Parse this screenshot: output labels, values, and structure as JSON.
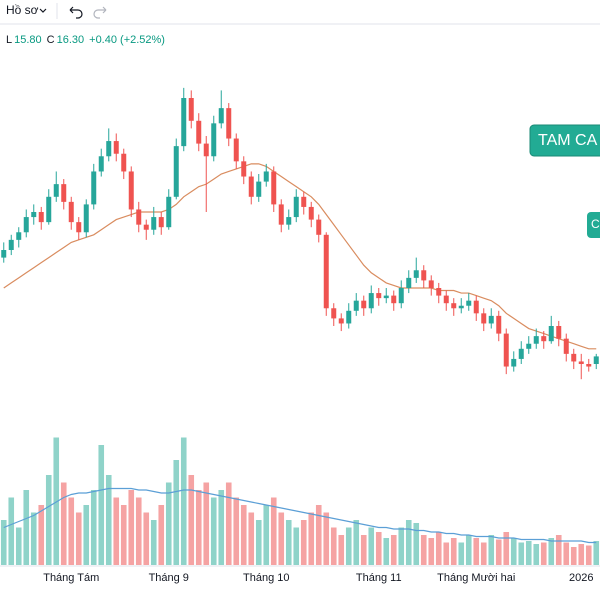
{
  "toolbar": {
    "profile": "Hồ sơ"
  },
  "legend": [
    {
      "label": "L",
      "value": "15.80"
    },
    {
      "label": "C",
      "value": "16.30"
    },
    {
      "value": "+0.40 (+2.52%)"
    }
  ],
  "badges": [
    "TAM CA",
    "C"
  ],
  "chart_data": {
    "type": "candlestick",
    "categories": [
      null,
      null,
      null,
      null,
      null,
      null,
      null,
      null,
      null,
      "Tháng Tám",
      null,
      null,
      null,
      null,
      null,
      null,
      null,
      null,
      null,
      null,
      null,
      null,
      "Tháng 9",
      null,
      null,
      null,
      null,
      null,
      null,
      null,
      null,
      null,
      null,
      null,
      null,
      "Tháng 10",
      null,
      null,
      null,
      null,
      null,
      null,
      null,
      null,
      null,
      null,
      null,
      null,
      null,
      null,
      "Tháng 11",
      null,
      null,
      null,
      null,
      null,
      null,
      null,
      null,
      null,
      null,
      null,
      null,
      "Tháng Mười hai",
      null,
      null,
      null,
      null,
      null,
      null,
      null,
      null,
      null,
      null,
      null,
      null,
      null,
      "2026",
      null,
      null
    ],
    "open": [
      20.2,
      20.5,
      20.9,
      21.2,
      21.8,
      22.0,
      21.6,
      22.6,
      23.1,
      22.4,
      21.6,
      21.2,
      22.3,
      23.6,
      24.2,
      24.8,
      24.3,
      23.6,
      22.1,
      21.5,
      21.3,
      21.8,
      21.4,
      22.6,
      24.6,
      26.5,
      25.6,
      24.7,
      24.2,
      25.5,
      26.1,
      24.9,
      24.0,
      23.4,
      22.6,
      23.2,
      23.6,
      22.3,
      21.5,
      21.8,
      22.6,
      22.2,
      21.7,
      21.1,
      18.2,
      17.8,
      17.6,
      18.1,
      18.5,
      18.2,
      18.8,
      18.6,
      18.7,
      18.4,
      19.0,
      19.4,
      19.7,
      19.3,
      19.0,
      18.7,
      18.4,
      18.2,
      18.3,
      18.5,
      18.0,
      17.6,
      17.9,
      17.2,
      15.9,
      16.2,
      16.6,
      16.8,
      17.1,
      16.9,
      17.5,
      17.0,
      16.4,
      16.1,
      16.0,
      16.0
    ],
    "high": [
      20.8,
      21.1,
      21.4,
      22.1,
      22.3,
      22.2,
      22.9,
      23.6,
      23.3,
      22.6,
      21.8,
      22.5,
      23.9,
      24.5,
      25.3,
      25.1,
      24.5,
      23.8,
      22.4,
      21.7,
      22.2,
      22.0,
      22.9,
      24.9,
      26.9,
      26.8,
      25.9,
      25.0,
      25.8,
      26.8,
      26.3,
      25.1,
      24.2,
      23.6,
      23.5,
      23.9,
      23.8,
      22.5,
      22.1,
      22.9,
      22.8,
      22.4,
      21.9,
      21.2,
      18.4,
      18.0,
      18.4,
      18.8,
      18.7,
      19.1,
      19.0,
      19.0,
      18.9,
      19.3,
      19.7,
      20.2,
      19.9,
      19.5,
      19.2,
      18.9,
      18.6,
      18.6,
      18.8,
      18.7,
      18.2,
      18.2,
      18.1,
      17.4,
      16.5,
      16.9,
      17.1,
      17.4,
      17.3,
      17.9,
      17.7,
      17.2,
      16.6,
      16.4,
      16.2,
      16.4
    ],
    "low": [
      20.0,
      20.3,
      20.6,
      21.0,
      21.5,
      21.3,
      21.5,
      22.4,
      22.1,
      21.3,
      20.9,
      21.0,
      22.1,
      23.4,
      24.0,
      24.0,
      23.3,
      21.8,
      21.2,
      20.9,
      21.1,
      21.1,
      21.3,
      22.5,
      24.4,
      25.3,
      24.4,
      22.0,
      24.0,
      25.3,
      24.6,
      23.7,
      23.1,
      22.3,
      22.4,
      23.0,
      22.0,
      21.2,
      21.3,
      21.6,
      21.9,
      21.4,
      20.8,
      17.9,
      17.5,
      17.3,
      17.4,
      17.9,
      17.9,
      18.0,
      18.3,
      18.4,
      18.1,
      18.2,
      18.8,
      19.2,
      19.0,
      18.7,
      18.4,
      18.1,
      17.9,
      18.0,
      18.1,
      17.7,
      17.3,
      17.4,
      16.9,
      15.6,
      15.7,
      16.0,
      16.4,
      16.6,
      16.6,
      16.8,
      16.7,
      16.1,
      15.8,
      15.4,
      15.7,
      15.8
    ],
    "close": [
      20.5,
      20.9,
      21.2,
      21.8,
      22.0,
      21.6,
      22.6,
      23.1,
      22.4,
      21.6,
      21.2,
      22.3,
      23.6,
      24.2,
      24.8,
      24.3,
      23.6,
      22.1,
      21.5,
      21.3,
      21.8,
      21.4,
      22.6,
      24.6,
      26.5,
      25.6,
      24.7,
      24.2,
      25.5,
      26.1,
      24.9,
      24.0,
      23.4,
      22.6,
      23.2,
      23.6,
      22.3,
      21.5,
      21.8,
      22.6,
      22.2,
      21.7,
      21.1,
      18.2,
      17.8,
      17.6,
      18.1,
      18.5,
      18.2,
      18.8,
      18.6,
      18.7,
      18.4,
      19.0,
      19.4,
      19.7,
      19.3,
      19.0,
      18.7,
      18.4,
      18.2,
      18.3,
      18.5,
      18.0,
      17.6,
      17.9,
      17.2,
      15.9,
      16.2,
      16.6,
      16.8,
      17.1,
      16.9,
      17.5,
      17.0,
      16.4,
      16.1,
      16.0,
      15.9,
      16.3
    ],
    "volume": [
      30,
      45,
      25,
      50,
      35,
      40,
      60,
      85,
      55,
      45,
      35,
      40,
      50,
      80,
      60,
      45,
      40,
      50,
      45,
      35,
      30,
      40,
      55,
      70,
      85,
      60,
      50,
      55,
      45,
      50,
      55,
      45,
      40,
      35,
      30,
      40,
      45,
      35,
      30,
      25,
      30,
      35,
      40,
      35,
      25,
      20,
      25,
      30,
      20,
      25,
      22,
      18,
      20,
      25,
      30,
      28,
      20,
      18,
      22,
      15,
      18,
      15,
      20,
      18,
      15,
      20,
      17,
      22,
      18,
      15,
      16,
      14,
      15,
      18,
      20,
      15,
      12,
      14,
      13,
      16
    ],
    "ma": [
      19.0,
      19.2,
      19.4,
      19.6,
      19.8,
      20.0,
      20.2,
      20.4,
      20.6,
      20.8,
      20.9,
      21.0,
      21.1,
      21.3,
      21.5,
      21.7,
      21.8,
      21.9,
      22.0,
      22.0,
      22.0,
      22.0,
      22.1,
      22.3,
      22.6,
      22.8,
      23.0,
      23.1,
      23.3,
      23.5,
      23.6,
      23.7,
      23.8,
      23.9,
      23.9,
      23.8,
      23.6,
      23.4,
      23.2,
      23.0,
      22.8,
      22.6,
      22.3,
      21.9,
      21.5,
      21.1,
      20.7,
      20.3,
      19.9,
      19.6,
      19.4,
      19.2,
      19.1,
      19.0,
      19.0,
      19.0,
      19.0,
      19.0,
      18.9,
      18.9,
      18.9,
      18.8,
      18.8,
      18.7,
      18.6,
      18.5,
      18.3,
      18.0,
      17.8,
      17.6,
      17.4,
      17.3,
      17.2,
      17.1,
      17.0,
      16.9,
      16.8,
      16.7,
      16.6,
      16.6
    ],
    "volume_ma": [
      25,
      27,
      29,
      31,
      33,
      36,
      39,
      42,
      45,
      47,
      48,
      48,
      49,
      50,
      51,
      51,
      51,
      51,
      50,
      50,
      49,
      48,
      48,
      49,
      50,
      50,
      49,
      48,
      47,
      46,
      45,
      44,
      43,
      42,
      41,
      40,
      39,
      38,
      37,
      36,
      35,
      34,
      33,
      32,
      31,
      30,
      29,
      28,
      27,
      26,
      25,
      25,
      24,
      24,
      24,
      23,
      23,
      22,
      22,
      21,
      21,
      20,
      20,
      19,
      19,
      19,
      18,
      18,
      18,
      17,
      17,
      17,
      17,
      16,
      16,
      16,
      16,
      16,
      15,
      15
    ],
    "ylim": [
      13,
      28
    ],
    "vlim": [
      0,
      100
    ],
    "up_color": "#26a69a",
    "down_color": "#ef5350",
    "volume_up_color": "#8fd3c9",
    "volume_down_color": "#f5a3a3",
    "ma_color": "#d98c5f",
    "volume_ma_color": "#5b9fd6"
  }
}
